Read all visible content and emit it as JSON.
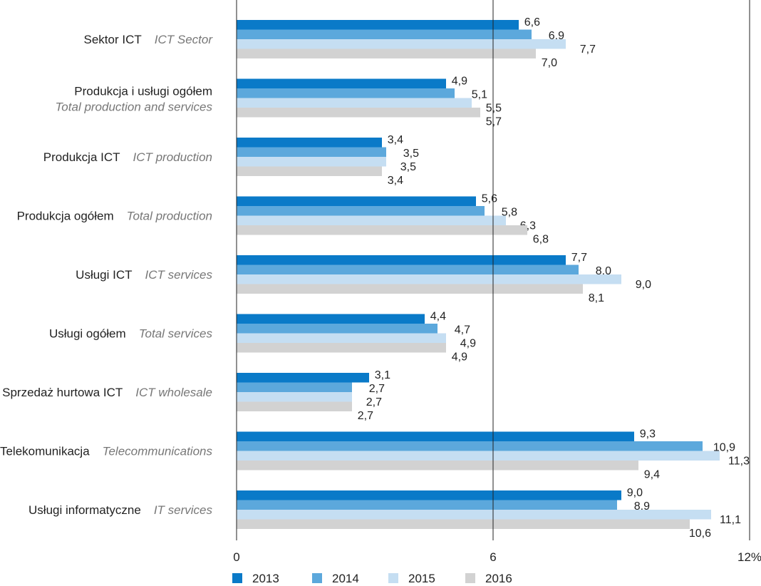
{
  "chart_data": {
    "type": "bar",
    "orientation": "horizontal",
    "categories": [
      {
        "pl": "Sektor ICT",
        "en": "ICT Sector"
      },
      {
        "pl": "Produkcja i usługi ogółem",
        "en": "Total production and services"
      },
      {
        "pl": "Produkcja ICT",
        "en": "ICT production"
      },
      {
        "pl": "Produkcja ogółem",
        "en": "Total production"
      },
      {
        "pl": "Usługi ICT",
        "en": "ICT services"
      },
      {
        "pl": "Usługi ogółem",
        "en": "Total services"
      },
      {
        "pl": "Sprzedaż hurtowa ICT",
        "en": "ICT wholesale"
      },
      {
        "pl": "Telekomunikacja",
        "en": "Telecommunications"
      },
      {
        "pl": "Usługi informatyczne",
        "en": "IT services"
      }
    ],
    "series": [
      {
        "name": "2013",
        "color": "#0a7ac8",
        "values": [
          6.6,
          4.9,
          3.4,
          5.6,
          7.7,
          4.4,
          3.1,
          9.3,
          9.0
        ],
        "labels": [
          "6,6",
          "4,9",
          "3,4",
          "5,6",
          "7,7",
          "4,4",
          "3,1",
          "9,3",
          "9,0"
        ]
      },
      {
        "name": "2014",
        "color": "#5ca8dc",
        "values": [
          6.9,
          5.1,
          3.5,
          5.8,
          8.0,
          4.7,
          2.7,
          10.9,
          8.9
        ],
        "labels": [
          "6,9",
          "5,1",
          "3,5",
          "5,8",
          "8,0",
          "4,7",
          "2,7",
          "10,9",
          "8,9"
        ]
      },
      {
        "name": "2015",
        "color": "#c5def2",
        "values": [
          7.7,
          5.5,
          3.5,
          6.3,
          9.0,
          4.9,
          2.7,
          11.3,
          11.1
        ],
        "labels": [
          "7,7",
          "5,5",
          "3,5",
          "6,3",
          "9,0",
          "4,9",
          "2,7",
          "11,3",
          "11,1"
        ]
      },
      {
        "name": "2016",
        "color": "#d2d2d2",
        "values": [
          7.0,
          5.7,
          3.4,
          6.8,
          8.1,
          4.9,
          2.7,
          9.4,
          10.6
        ],
        "labels": [
          "7,0",
          "5,7",
          "3,4",
          "6,8",
          "8,1",
          "4,9",
          "2,7",
          "9,4",
          "10,6"
        ]
      }
    ],
    "x_ticks": [
      {
        "value": 0,
        "label": "0"
      },
      {
        "value": 6,
        "label": "6"
      },
      {
        "value": 12,
        "label": "12%"
      }
    ],
    "xlim": [
      0,
      12
    ],
    "gridlines_at": [
      6,
      12
    ],
    "legend": "bottom",
    "title": "",
    "xlabel": "",
    "ylabel": ""
  }
}
